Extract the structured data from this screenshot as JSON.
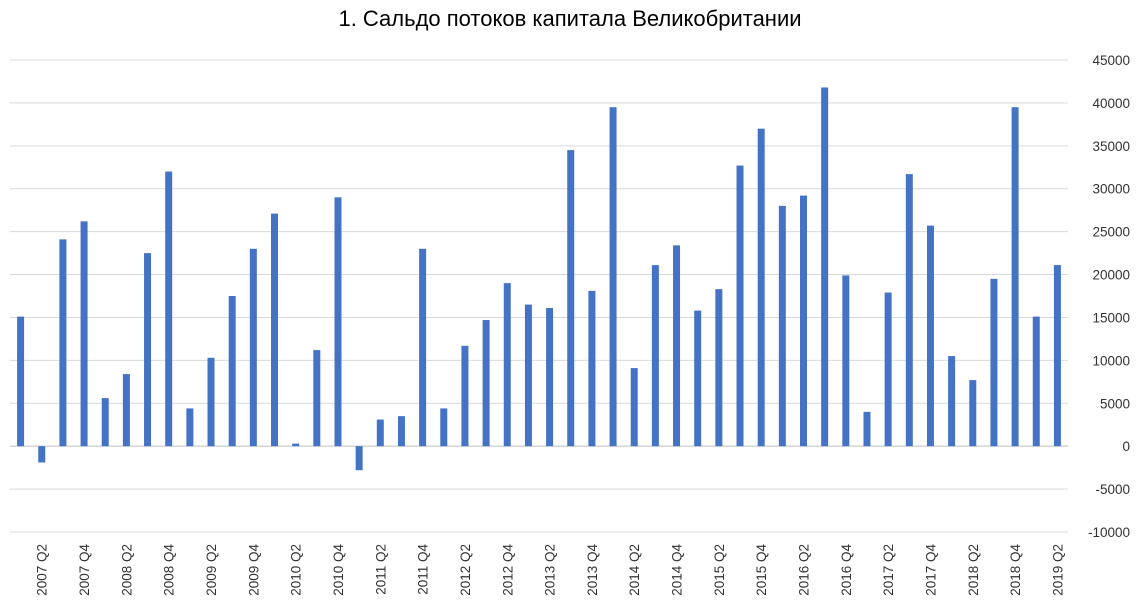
{
  "chart_data": {
    "type": "bar",
    "title": "1. Сальдо потоков капитала Великобритании",
    "xlabel": "",
    "ylabel": "",
    "ylim": [
      -10000,
      45000
    ],
    "yticks": [
      -10000,
      -5000,
      0,
      5000,
      10000,
      15000,
      20000,
      25000,
      30000,
      35000,
      40000,
      45000
    ],
    "ytick_labels": [
      "-10000",
      "-5000",
      "0",
      "5000",
      "10000",
      "15000",
      "20000",
      "25000",
      "30000",
      "35000",
      "40000",
      "45000"
    ],
    "grid": true,
    "y_axis_side": "right",
    "bar_color": "#4472C4",
    "categories": [
      "2007 Q1",
      "2007 Q2",
      "2007 Q3",
      "2007 Q4",
      "2008 Q1",
      "2008 Q2",
      "2008 Q3",
      "2008 Q4",
      "2009 Q1",
      "2009 Q2",
      "2009 Q3",
      "2009 Q4",
      "2010 Q1",
      "2010 Q2",
      "2010 Q3",
      "2010 Q4",
      "2011 Q1",
      "2011 Q2",
      "2011 Q3",
      "2011 Q4",
      "2012 Q1",
      "2012 Q2",
      "2012 Q3",
      "2012 Q4",
      "2013 Q1",
      "2013 Q2",
      "2013 Q3",
      "2013 Q4",
      "2014 Q1",
      "2014 Q2",
      "2014 Q3",
      "2014 Q4",
      "2015 Q1",
      "2015 Q2",
      "2015 Q3",
      "2015 Q4",
      "2016 Q1",
      "2016 Q2",
      "2016 Q3",
      "2016 Q4",
      "2017 Q1",
      "2017 Q2",
      "2017 Q3",
      "2017 Q4",
      "2018 Q1",
      "2018 Q2",
      "2018 Q3",
      "2018 Q4",
      "2019 Q1",
      "2019 Q2"
    ],
    "tick_labels": [
      "2007 Q2",
      "2007 Q4",
      "2008 Q2",
      "2008 Q4",
      "2009 Q2",
      "2009 Q4",
      "2010 Q2",
      "2010 Q4",
      "2011 Q2",
      "2011 Q4",
      "2012 Q2",
      "2012 Q4",
      "2013 Q2",
      "2013 Q4",
      "2014 Q2",
      "2014 Q4",
      "2015 Q2",
      "2015 Q4",
      "2016 Q2",
      "2016 Q4",
      "2017 Q2",
      "2017 Q4",
      "2018 Q2",
      "2018 Q4",
      "2019 Q2"
    ],
    "values": [
      15100,
      -1900,
      24100,
      26200,
      5600,
      8400,
      22500,
      32000,
      4400,
      10300,
      17500,
      23000,
      27100,
      300,
      11200,
      29000,
      -2800,
      3100,
      3500,
      23000,
      4400,
      11700,
      14700,
      19000,
      16500,
      16100,
      34500,
      18100,
      39500,
      9100,
      21100,
      23400,
      15800,
      18300,
      32700,
      37000,
      28000,
      29200,
      41800,
      19900,
      4000,
      17900,
      31700,
      25700,
      10500,
      7700,
      19500,
      39500,
      15100,
      21100
    ]
  }
}
